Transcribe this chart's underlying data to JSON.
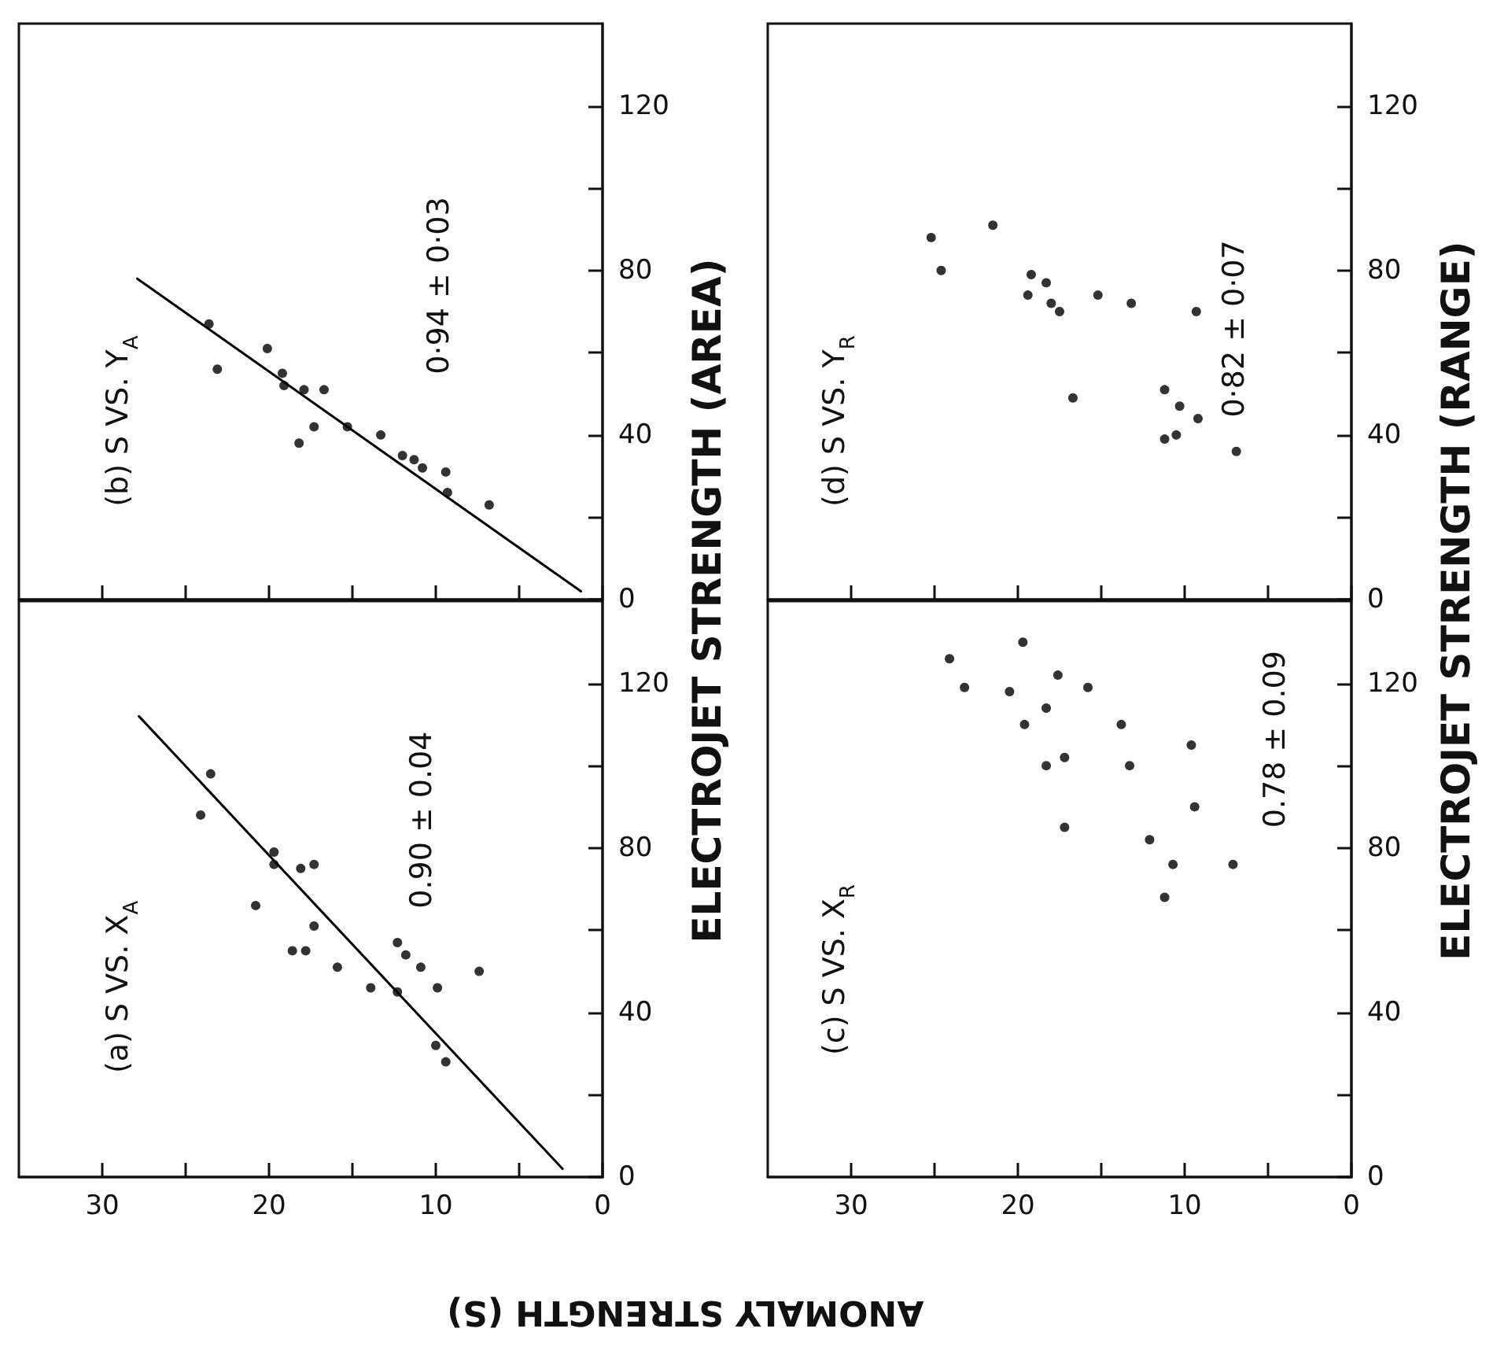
{
  "chart_data": [
    {
      "type": "scatter",
      "ylabel": "ELECTROJET STRENGTH (AREA)",
      "annotations": [
        "(b) S VS. Y$_{A}$",
        "0·94 ± 0·03"
      ],
      "marker": "circle",
      "tick_labels": "y",
      "xlim": [
        35,
        0
      ],
      "xticks": [
        {
          "value": 30,
          "label": null
        },
        {
          "value": 25,
          "label": null
        },
        {
          "value": 20,
          "label": null
        },
        {
          "value": 15,
          "label": null
        },
        {
          "value": 10,
          "label": null
        },
        {
          "value": 5,
          "label": null
        },
        {
          "value": 0,
          "label": null
        }
      ],
      "ylim": [
        0,
        140
      ],
      "yticks": [
        0,
        {
          "value": 20,
          "label": null
        },
        40,
        {
          "value": 60,
          "label": null
        },
        80,
        {
          "value": 100,
          "label": null
        },
        120
      ],
      "series": [
        {
          "color": "#000000",
          "x": [
            23.6,
            23.1,
            20.1,
            19.2,
            19.1,
            17.9,
            16.7,
            17.3,
            18.2,
            15.3,
            13.3,
            12.0,
            11.3,
            10.8,
            9.4,
            9.3,
            6.8
          ],
          "values": [
            67,
            56,
            61,
            55,
            52,
            51,
            51,
            42,
            38,
            42,
            40,
            35,
            34,
            32,
            31,
            26,
            23
          ]
        },
        {
          "type": "line",
          "color": "#000000",
          "marker": "none",
          "x": [
            27.9,
            1.3
          ],
          "values": [
            78,
            2
          ]
        }
      ]
    },
    {
      "type": "scatter",
      "ylabel": "ELECTROJET STRENGTH (RANGE)",
      "annotations": [
        "(d) S VS. Y$_{R}$",
        "0·82 ± 0·07"
      ],
      "marker": "circle",
      "tick_labels": "y",
      "xlim": [
        35,
        0
      ],
      "xticks": [
        {
          "value": 30,
          "label": null
        },
        {
          "value": 25,
          "label": null
        },
        {
          "value": 20,
          "label": null
        },
        {
          "value": 15,
          "label": null
        },
        {
          "value": 10,
          "label": null
        },
        {
          "value": 5,
          "label": null
        },
        {
          "value": 0,
          "label": null
        }
      ],
      "ylim": [
        0,
        140
      ],
      "yticks": [
        0,
        {
          "value": 20,
          "label": null
        },
        40,
        {
          "value": 60,
          "label": null
        },
        80,
        {
          "value": 100,
          "label": null
        },
        120
      ],
      "series": [
        {
          "color": "#000000",
          "x": [
            25.2,
            24.6,
            21.5,
            19.2,
            19.4,
            18.3,
            17.5,
            18.0,
            15.2,
            13.2,
            9.3,
            16.7,
            11.2,
            10.3,
            10.5,
            11.2,
            6.9,
            9.2
          ],
          "values": [
            88,
            80,
            91,
            79,
            74,
            77,
            70,
            72,
            74,
            72,
            70,
            49,
            51,
            47,
            40,
            39,
            36,
            44
          ]
        }
      ]
    },
    {
      "type": "scatter",
      "xlabel": "ANOMALY STRENGTH (S)",
      "annotations": [
        "(a) S VS. X$_{A}$",
        "0.90 ± 0.04"
      ],
      "marker": "circle",
      "xlim": [
        35,
        0
      ],
      "xticks": [
        30,
        {
          "value": 25,
          "label": null
        },
        20,
        {
          "value": 15,
          "label": null
        },
        10,
        {
          "value": 5,
          "label": null
        },
        0
      ],
      "ylim": [
        0,
        140
      ],
      "yticks": [
        0,
        {
          "value": 20,
          "label": null
        },
        40,
        {
          "value": 60,
          "label": null
        },
        80,
        {
          "value": 100,
          "label": null
        },
        120
      ],
      "series": [
        {
          "color": "#000000",
          "x": [
            23.5,
            24.1,
            19.7,
            19.7,
            18.1,
            17.3,
            20.8,
            17.3,
            18.6,
            17.8,
            15.9,
            13.9,
            12.3,
            11.8,
            10.9,
            12.3,
            9.9,
            7.4,
            10.0,
            9.4
          ],
          "values": [
            98,
            88,
            79,
            76,
            75,
            76,
            66,
            61,
            55,
            55,
            51,
            46,
            57,
            54,
            51,
            45,
            46,
            50,
            32,
            28
          ]
        },
        {
          "type": "line",
          "color": "#000000",
          "marker": "none",
          "x": [
            27.8,
            2.4
          ],
          "values": [
            112,
            2
          ]
        }
      ]
    },
    {
      "type": "scatter",
      "annotations": [
        "(c) S VS. X$_{R}$",
        "0.78 ± 0.09"
      ],
      "marker": "circle",
      "xlim": [
        35,
        0
      ],
      "xticks": [
        30,
        {
          "value": 25,
          "label": null
        },
        20,
        {
          "value": 15,
          "label": null
        },
        10,
        {
          "value": 5,
          "label": null
        },
        0
      ],
      "ylim": [
        0,
        140
      ],
      "yticks": [
        0,
        {
          "value": 20,
          "label": null
        },
        40,
        {
          "value": 60,
          "label": null
        },
        80,
        {
          "value": 100,
          "label": null
        },
        120
      ],
      "series": [
        {
          "color": "#000000",
          "x": [
            24.1,
            23.2,
            20.5,
            19.7,
            17.6,
            15.8,
            18.3,
            19.6,
            13.8,
            18.3,
            17.2,
            13.3,
            9.6,
            9.4,
            17.2,
            12.1,
            10.7,
            11.2,
            7.1
          ],
          "values": [
            126,
            119,
            118,
            130,
            122,
            119,
            114,
            110,
            110,
            100,
            102,
            100,
            105,
            90,
            85,
            82,
            76,
            68,
            76
          ]
        }
      ]
    }
  ]
}
